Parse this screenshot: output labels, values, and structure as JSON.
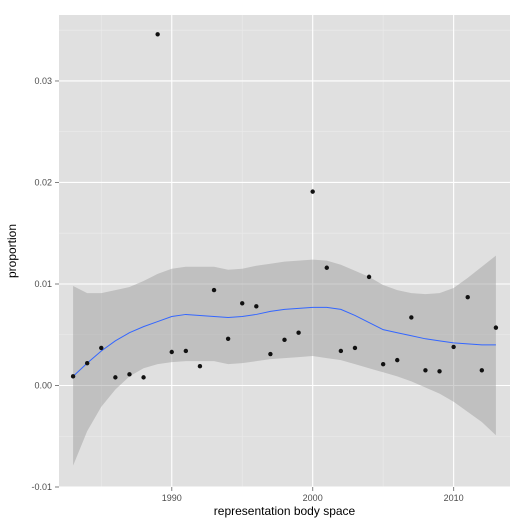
{
  "chart_data": {
    "type": "scatter",
    "title": "",
    "xlabel": "representation body space",
    "ylabel": "proportion",
    "xlim": [
      1982,
      2014
    ],
    "ylim": [
      -0.01,
      0.0365
    ],
    "x_ticks": [
      1990,
      2000,
      2010
    ],
    "y_ticks": [
      -0.01,
      0.0,
      0.01,
      0.02,
      0.03
    ],
    "x_tick_labels": [
      "1990",
      "2000",
      "2010"
    ],
    "y_tick_labels": [
      "-0.01",
      "0.00",
      "0.01",
      "0.02",
      "0.03"
    ],
    "grid": true,
    "legend": "none",
    "colors": {
      "panel_background": "#e0e0e0",
      "grid_major": "#ffffff",
      "grid_minor": "#ebebeb",
      "points": "#111111",
      "smooth_line": "#3366ff",
      "confidence_band": "#999999"
    },
    "series": [
      {
        "kind": "points",
        "x": [
          1983,
          1984,
          1985,
          1986,
          1987,
          1988,
          1989,
          1990,
          1991,
          1992,
          1993,
          1994,
          1995,
          1996,
          1997,
          1998,
          1999,
          2000,
          2001,
          2002,
          2003,
          2004,
          2005,
          2006,
          2007,
          2008,
          2009,
          2010,
          2011,
          2012,
          2013
        ],
        "y": [
          0.0009,
          0.0022,
          0.0037,
          0.0008,
          0.0011,
          0.0008,
          0.0346,
          0.0033,
          0.0034,
          0.0019,
          0.0094,
          0.0046,
          0.0081,
          0.0078,
          0.0031,
          0.0045,
          0.0052,
          0.0191,
          0.0116,
          0.0034,
          0.0037,
          0.0107,
          0.0021,
          0.0025,
          0.0067,
          0.0015,
          0.0014,
          0.0038,
          0.0087,
          0.0015,
          0.0057
        ]
      },
      {
        "kind": "smooth",
        "x": [
          1983,
          1984,
          1985,
          1986,
          1987,
          1988,
          1989,
          1990,
          1991,
          1992,
          1993,
          1994,
          1995,
          1996,
          1997,
          1998,
          1999,
          2000,
          2001,
          2002,
          2003,
          2004,
          2005,
          2006,
          2007,
          2008,
          2009,
          2010,
          2011,
          2012,
          2013
        ],
        "y": [
          0.0009,
          0.0022,
          0.0034,
          0.0044,
          0.0052,
          0.0058,
          0.0063,
          0.0068,
          0.007,
          0.0069,
          0.0068,
          0.0067,
          0.0068,
          0.007,
          0.0073,
          0.0075,
          0.0076,
          0.0077,
          0.0077,
          0.0075,
          0.0069,
          0.0062,
          0.0055,
          0.0052,
          0.0049,
          0.0046,
          0.0044,
          0.0042,
          0.0041,
          0.004,
          0.004
        ],
        "lower": [
          -0.0079,
          -0.0045,
          -0.0021,
          -0.0004,
          0.0009,
          0.0017,
          0.0021,
          0.0023,
          0.0024,
          0.0024,
          0.0024,
          0.0021,
          0.0022,
          0.0024,
          0.0026,
          0.0027,
          0.0028,
          0.0029,
          0.0027,
          0.0025,
          0.0021,
          0.0017,
          0.0013,
          0.0009,
          0.0004,
          -0.0002,
          -0.0008,
          -0.0016,
          -0.0026,
          -0.0036,
          -0.0049
        ],
        "upper": [
          0.0098,
          0.0091,
          0.0091,
          0.0094,
          0.0097,
          0.0103,
          0.011,
          0.0115,
          0.0117,
          0.0117,
          0.0117,
          0.0114,
          0.0115,
          0.0118,
          0.012,
          0.0122,
          0.0123,
          0.0124,
          0.0123,
          0.0119,
          0.0113,
          0.0107,
          0.0099,
          0.0094,
          0.0091,
          0.009,
          0.0091,
          0.0096,
          0.0106,
          0.0117,
          0.0128
        ]
      }
    ]
  }
}
